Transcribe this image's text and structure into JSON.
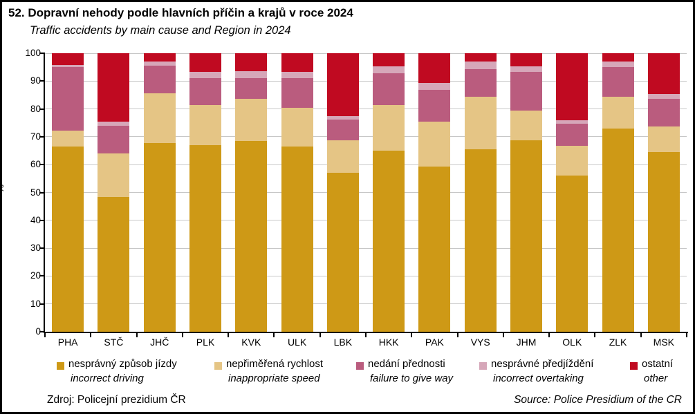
{
  "title": "52. Dopravní nehody podle hlavních příčin a krajů v roce 2024",
  "subtitle": "Traffic accidents by main cause and Region in 2024",
  "footer": {
    "source_cs": "Zdroj:  Policejní  prezidium  ČR",
    "source_en": "Source: Police Presidium of the CR"
  },
  "chart_data": {
    "type": "bar",
    "stacked": true,
    "percent": true,
    "title": "52. Dopravní nehody podle hlavních příčin a krajů v roce 2024",
    "subtitle": "Traffic accidents by main cause and Region in 2024",
    "xlabel": "",
    "ylabel": "%",
    "ylim": [
      0,
      100
    ],
    "yticks": [
      0,
      10,
      20,
      30,
      40,
      50,
      60,
      70,
      80,
      90,
      100
    ],
    "grid": true,
    "legend_position": "bottom",
    "categories": [
      "PHA",
      "STČ",
      "JHČ",
      "PLK",
      "KVK",
      "ULK",
      "LBK",
      "HKK",
      "PAK",
      "VYS",
      "JHM",
      "OLK",
      "ZLK",
      "MSK"
    ],
    "series": [
      {
        "name": "nesprávný způsob jízdy",
        "name_en": "incorrect driving",
        "color": "#CE9916",
        "values": [
          66.5,
          48.3,
          67.8,
          67.0,
          68.5,
          66.5,
          57.0,
          65.0,
          59.3,
          65.5,
          68.8,
          56.0,
          73.0,
          64.5
        ]
      },
      {
        "name": "nepřiměřená rychlost",
        "name_en": "inappropriate speed",
        "color": "#E5C585",
        "values": [
          5.8,
          15.8,
          17.7,
          14.3,
          15.2,
          13.8,
          11.8,
          16.5,
          16.1,
          18.8,
          10.5,
          10.8,
          11.4,
          9.3
        ]
      },
      {
        "name": "nedání přednosti",
        "name_en": "failure to give  way",
        "color": "#BA5C7E",
        "values": [
          22.7,
          9.9,
          10.0,
          9.8,
          7.4,
          10.8,
          7.3,
          11.4,
          11.4,
          10.1,
          14.1,
          8.0,
          10.6,
          9.8
        ]
      },
      {
        "name": "nesprávné předjíždění",
        "name_en": "incorrect overtaking",
        "color": "#D6A7B9",
        "values": [
          0.7,
          1.5,
          1.5,
          2.2,
          2.5,
          2.3,
          1.4,
          2.5,
          2.5,
          2.5,
          1.8,
          1.2,
          2.0,
          1.8
        ]
      },
      {
        "name": "ostatní",
        "name_en": "other",
        "color": "#C00A21",
        "values": [
          4.3,
          24.5,
          3.0,
          6.7,
          6.4,
          6.6,
          22.5,
          4.6,
          10.7,
          3.1,
          4.8,
          24.0,
          3.0,
          14.6
        ]
      }
    ]
  }
}
